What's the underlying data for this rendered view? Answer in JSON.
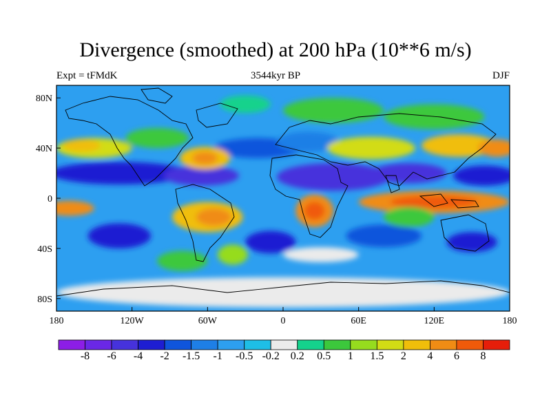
{
  "title": "Divergence (smoothed) at 200 hPa (10**6 m/s)",
  "subtitle_left": "Expt = tFMdK",
  "subtitle_center": "3544kyr BP",
  "subtitle_right": "DJF",
  "y_axis": {
    "ticks": [
      "80N",
      "40N",
      "0",
      "40S",
      "80S"
    ],
    "values": [
      80,
      40,
      0,
      -40,
      -80
    ]
  },
  "x_axis": {
    "ticks": [
      "180",
      "120W",
      "60W",
      "0",
      "60E",
      "120E",
      "180"
    ],
    "values": [
      -180,
      -120,
      -60,
      0,
      60,
      120,
      180
    ]
  },
  "colorbar": {
    "labels": [
      "-8",
      "-6",
      "-4",
      "-2",
      "-1.5",
      "-1",
      "-0.5",
      "-0.2",
      "0.2",
      "0.5",
      "1",
      "1.5",
      "2",
      "4",
      "6",
      "8"
    ],
    "colors": [
      "#8c1ee6",
      "#6a28e6",
      "#4632dc",
      "#1e1ed2",
      "#0f55dc",
      "#1e7fe6",
      "#2d9ff0",
      "#1ebee6",
      "#ebebeb",
      "#14d28c",
      "#3cc83c",
      "#96dc1e",
      "#d2dc14",
      "#f0be0a",
      "#f08c14",
      "#f05a0a",
      "#e61e0a"
    ]
  },
  "map_features": [
    {
      "type": "ellipse",
      "lon": -130,
      "lat": 20,
      "rlon": 55,
      "rlat": 9,
      "color_index": 3
    },
    {
      "type": "ellipse",
      "lon": -65,
      "lat": 18,
      "rlon": 30,
      "rlat": 8,
      "color_index": 2
    },
    {
      "type": "ellipse",
      "lon": 40,
      "lat": 17,
      "rlon": 45,
      "rlat": 11,
      "color_index": 2
    },
    {
      "type": "ellipse",
      "lon": 100,
      "lat": 20,
      "rlon": 30,
      "rlat": 8,
      "color_index": 2
    },
    {
      "type": "ellipse",
      "lon": 160,
      "lat": 18,
      "rlon": 25,
      "rlat": 8,
      "color_index": 3
    },
    {
      "type": "ellipse",
      "lon": -20,
      "lat": 40,
      "rlon": 35,
      "rlat": 8,
      "color_index": 4
    },
    {
      "type": "ellipse",
      "lon": 20,
      "lat": 45,
      "rlon": 25,
      "rlat": 8,
      "color_index": 5
    },
    {
      "type": "ellipse",
      "lon": -150,
      "lat": 40,
      "rlon": 30,
      "rlat": 8,
      "color_index": 12
    },
    {
      "type": "ellipse",
      "lon": -160,
      "lat": 42,
      "rlon": 15,
      "rlat": 5,
      "color_index": 13
    },
    {
      "type": "ellipse",
      "lon": -100,
      "lat": 48,
      "rlon": 25,
      "rlat": 8,
      "color_index": 10
    },
    {
      "type": "ellipse",
      "lon": -62,
      "lat": 32,
      "rlon": 20,
      "rlat": 9,
      "color_index": 13
    },
    {
      "type": "ellipse",
      "lon": -62,
      "lat": 32,
      "rlon": 10,
      "rlat": 5,
      "color_index": 14
    },
    {
      "type": "ellipse",
      "lon": 70,
      "lat": 40,
      "rlon": 35,
      "rlat": 9,
      "color_index": 12
    },
    {
      "type": "ellipse",
      "lon": 140,
      "lat": 42,
      "rlon": 30,
      "rlat": 9,
      "color_index": 13
    },
    {
      "type": "ellipse",
      "lon": 170,
      "lat": 40,
      "rlon": 15,
      "rlat": 7,
      "color_index": 14
    },
    {
      "type": "ellipse",
      "lon": 40,
      "lat": 70,
      "rlon": 40,
      "rlat": 10,
      "color_index": 10
    },
    {
      "type": "ellipse",
      "lon": 120,
      "lat": 65,
      "rlon": 40,
      "rlat": 10,
      "color_index": 10
    },
    {
      "type": "ellipse",
      "lon": -30,
      "lat": 75,
      "rlon": 20,
      "rlat": 7,
      "color_index": 9
    },
    {
      "type": "ellipse",
      "lon": -60,
      "lat": -15,
      "rlon": 28,
      "rlat": 12,
      "color_index": 13
    },
    {
      "type": "ellipse",
      "lon": -55,
      "lat": -15,
      "rlon": 14,
      "rlat": 7,
      "color_index": 14
    },
    {
      "type": "ellipse",
      "lon": 25,
      "lat": -10,
      "rlon": 15,
      "rlat": 13,
      "color_index": 14
    },
    {
      "type": "ellipse",
      "lon": 25,
      "lat": -10,
      "rlon": 8,
      "rlat": 7,
      "color_index": 15
    },
    {
      "type": "ellipse",
      "lon": 120,
      "lat": -3,
      "rlon": 60,
      "rlat": 9,
      "color_index": 14
    },
    {
      "type": "ellipse",
      "lon": 120,
      "lat": -3,
      "rlon": 35,
      "rlat": 5,
      "color_index": 15
    },
    {
      "type": "ellipse",
      "lon": -170,
      "lat": -8,
      "rlon": 20,
      "rlat": 6,
      "color_index": 14
    },
    {
      "type": "ellipse",
      "lon": -130,
      "lat": -30,
      "rlon": 25,
      "rlat": 10,
      "color_index": 3
    },
    {
      "type": "ellipse",
      "lon": -10,
      "lat": -35,
      "rlon": 20,
      "rlat": 9,
      "color_index": 3
    },
    {
      "type": "ellipse",
      "lon": 80,
      "lat": -30,
      "rlon": 30,
      "rlat": 9,
      "color_index": 4
    },
    {
      "type": "ellipse",
      "lon": 150,
      "lat": -35,
      "rlon": 20,
      "rlat": 8,
      "color_index": 3
    },
    {
      "type": "ellipse",
      "lon": -40,
      "lat": -45,
      "rlon": 12,
      "rlat": 8,
      "color_index": 11
    },
    {
      "type": "ellipse",
      "lon": -80,
      "lat": -50,
      "rlon": 20,
      "rlat": 8,
      "color_index": 10
    },
    {
      "type": "ellipse",
      "lon": 100,
      "lat": -15,
      "rlon": 20,
      "rlat": 8,
      "color_index": 10
    },
    {
      "type": "ellipse",
      "lon": 30,
      "lat": -45,
      "rlon": 30,
      "rlat": 6,
      "color_index": 8
    },
    {
      "type": "ellipse",
      "lon": 0,
      "lat": -75,
      "rlon": 180,
      "rlat": 12,
      "color_index": 8
    }
  ]
}
